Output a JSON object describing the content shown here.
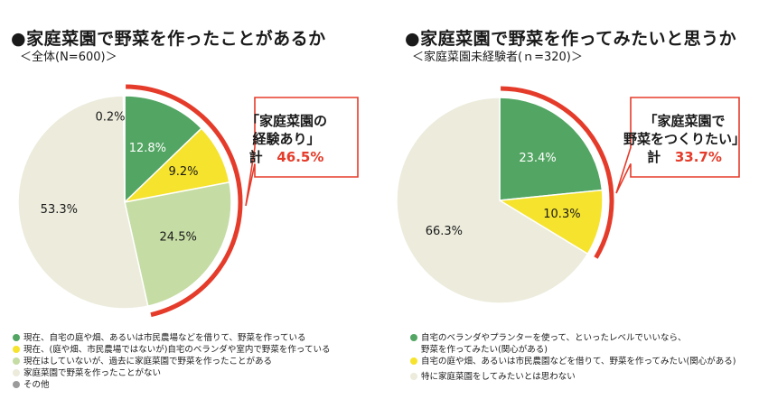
{
  "colors": {
    "green": "#52a562",
    "yellow": "#f6e32d",
    "light_green": "#c5dca4",
    "cream": "#ecebdc",
    "gray": "#9b9b9b",
    "accent_red": "#e53b2a"
  },
  "chart_data": [
    {
      "type": "pie",
      "title": "●家庭菜園で野菜を作ったことがあるか",
      "subtitle": "＜全体(N=600)＞",
      "start": "12 o'clock",
      "direction": "clockwise",
      "slices": [
        {
          "label": "現在、自宅の庭や畑、あるいは市民農場などを借りて、野菜を作っている",
          "value": 12.8,
          "display": "12.8%",
          "color": "#52a562"
        },
        {
          "label": "現在、(庭や畑、市民農場ではないが)自宅のベランダや室内で野菜を作っている",
          "value": 9.2,
          "display": "9.2%",
          "color": "#f6e32d"
        },
        {
          "label": "現在はしていないが、過去に家庭菜園で野菜を作ったことがある",
          "value": 24.5,
          "display": "24.5%",
          "color": "#c5dca4"
        },
        {
          "label": "家庭菜園で野菜を作ったことがない",
          "value": 53.3,
          "display": "53.3%",
          "color": "#ecebdc"
        },
        {
          "label": "その他",
          "value": 0.2,
          "display": "0.2%",
          "color": "#9b9b9b"
        }
      ],
      "callout": {
        "line1": "「家庭菜園の",
        "line2": "経験あり」",
        "total_label": "計",
        "total_value": "46.5%"
      }
    },
    {
      "type": "pie",
      "title": "●家庭菜園で野菜を作ってみたいと思うか",
      "subtitle": "＜家庭菜園未経験者(ｎ=320)＞",
      "start": "12 o'clock",
      "direction": "clockwise",
      "slices": [
        {
          "label": "自宅のベランダやプランターを使って、といったレベルでいいなら、\n野菜を作ってみたい(関心がある)",
          "value": 23.4,
          "display": "23.4%",
          "color": "#52a562"
        },
        {
          "label": "自宅の庭や畑、あるいは市民農園などを借りて、野菜を作ってみたい(関心がある)",
          "value": 10.3,
          "display": "10.3%",
          "color": "#f6e32d"
        },
        {
          "label": "特に家庭菜園をしてみたいとは思わない",
          "value": 66.3,
          "display": "66.3%",
          "color": "#ecebdc"
        }
      ],
      "callout": {
        "line1": "「家庭菜園で",
        "line2": "野菜をつくりたい」",
        "total_label": "計",
        "total_value": "33.7%"
      }
    }
  ]
}
